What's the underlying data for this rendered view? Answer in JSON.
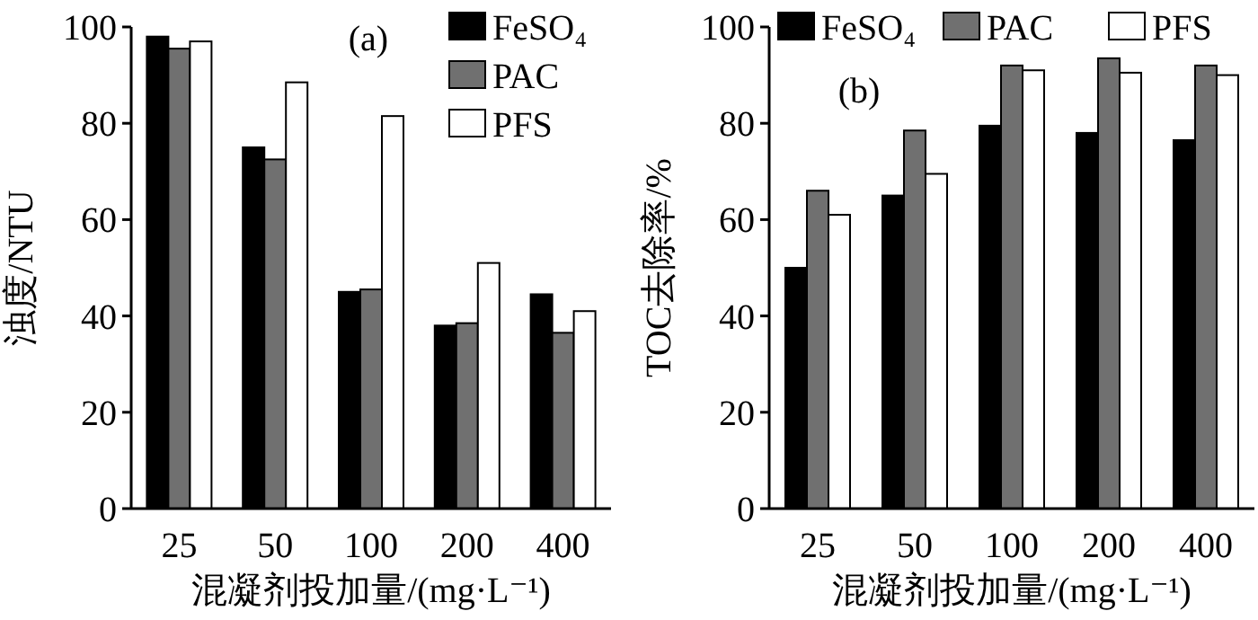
{
  "chart_data": [
    {
      "type": "bar",
      "categories": [
        "25",
        "50",
        "100",
        "200",
        "400"
      ],
      "xlabel": "混凝剂投加量/(mg·L⁻¹)",
      "ylabel": "浊度/NTU",
      "annotations": [
        "(a)"
      ],
      "ylim": [
        0,
        100
      ],
      "yticks": [
        0,
        20,
        40,
        60,
        80,
        100
      ],
      "legend": "top right",
      "series": [
        {
          "name": "FeSO₄",
          "color": "#000000",
          "values": [
            98,
            75,
            45,
            38,
            44.5
          ]
        },
        {
          "name": "PAC",
          "color": "#707070",
          "values": [
            95.5,
            72.5,
            45.5,
            38.5,
            36.5
          ]
        },
        {
          "name": "PFS",
          "color": "#ffffff",
          "values": [
            97,
            88.5,
            81.5,
            51,
            41
          ]
        }
      ]
    },
    {
      "type": "bar",
      "categories": [
        "25",
        "50",
        "100",
        "200",
        "400"
      ],
      "xlabel": "混凝剂投加量/(mg·L⁻¹)",
      "ylabel": "TOC去除率/%",
      "annotations": [
        "(b)"
      ],
      "ylim": [
        0,
        100
      ],
      "yticks": [
        0,
        20,
        40,
        60,
        80,
        100
      ],
      "legend": "top",
      "series": [
        {
          "name": "FeSO₄",
          "color": "#000000",
          "values": [
            50,
            65,
            79.5,
            78,
            76.5
          ]
        },
        {
          "name": "PAC",
          "color": "#707070",
          "values": [
            66,
            78.5,
            92,
            93.5,
            92
          ]
        },
        {
          "name": "PFS",
          "color": "#ffffff",
          "values": [
            61,
            69.5,
            91,
            90.5,
            90
          ]
        }
      ]
    }
  ]
}
